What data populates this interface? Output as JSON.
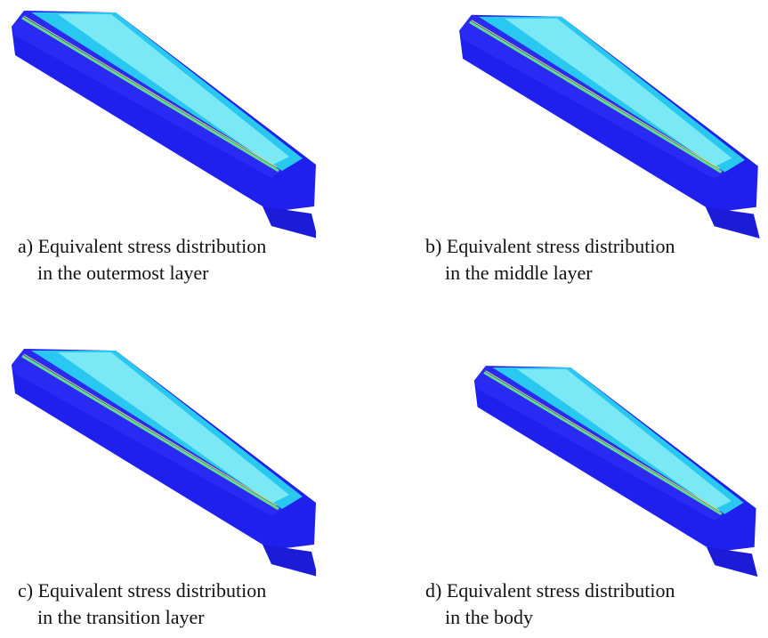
{
  "panels": [
    {
      "caption": [
        "a) Equivalent stress distribution",
        "in the outermost layer"
      ]
    },
    {
      "caption": [
        "b) Equivalent stress distribution",
        "in the middle layer"
      ]
    },
    {
      "caption": [
        "c) Equivalent stress distribution",
        "in the transition layer"
      ]
    },
    {
      "caption": [
        "d) Equivalent stress distribution",
        "in the body"
      ]
    }
  ]
}
